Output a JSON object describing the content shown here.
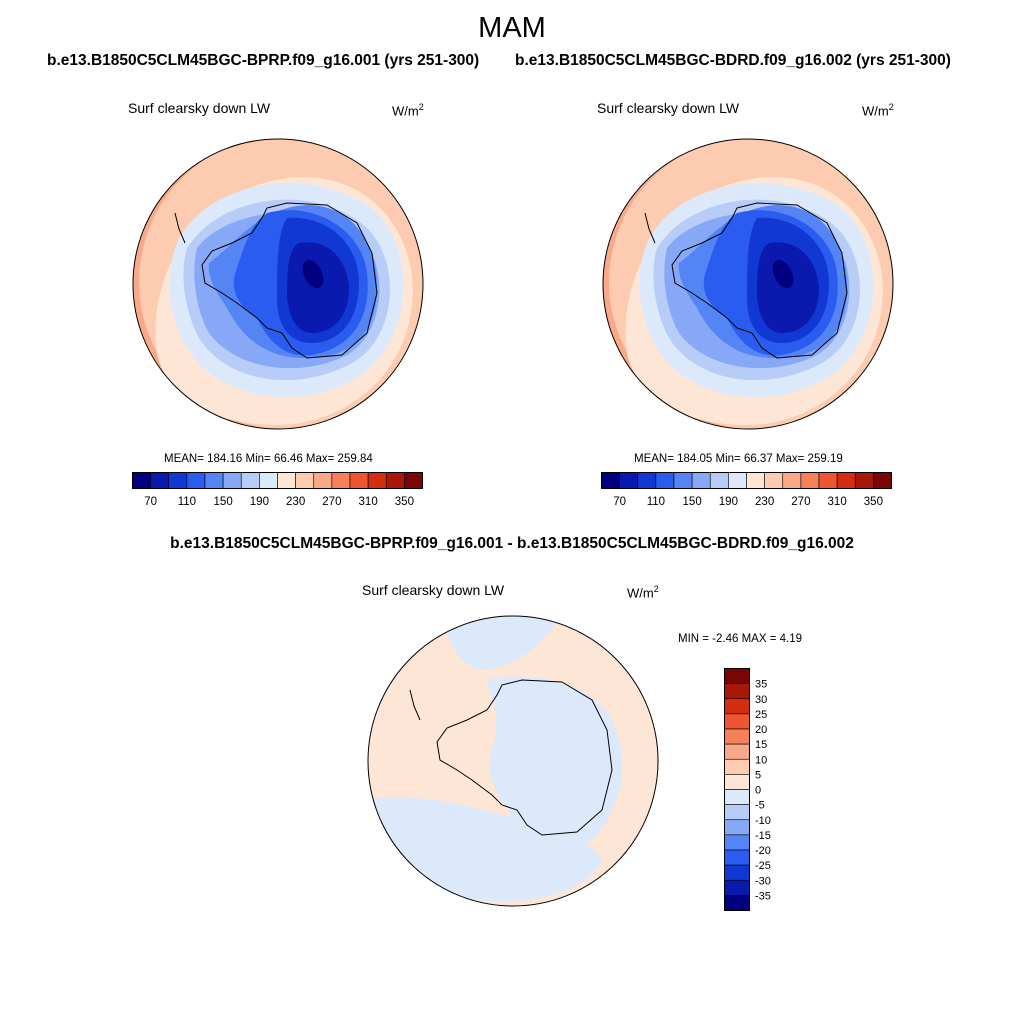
{
  "figure": {
    "title": "MAM",
    "case_a": "b.e13.B1850C5CLM45BGC-BPRP.f09_g16.001 (yrs 251-300)",
    "case_b": "b.e13.B1850C5CLM45BGC-BDRD.f09_g16.002 (yrs 251-300)",
    "diff_title": "b.e13.B1850C5CLM45BGC-BPRP.f09_g16.001 - b.e13.B1850C5CLM45BGC-BDRD.f09_g16.002"
  },
  "panels": [
    {
      "variable": "Surf clearsky down LW",
      "units": "W/m",
      "units_exp": "2",
      "stats_text": "MEAN= 184.16  Min=  66.46  Max= 259.84",
      "mean": 184.16,
      "min": 66.46,
      "max": 259.84
    },
    {
      "variable": "Surf clearsky down LW",
      "units": "W/m",
      "units_exp": "2",
      "stats_text": "MEAN= 184.05  Min=  66.37  Max= 259.19",
      "mean": 184.05,
      "min": 66.37,
      "max": 259.19
    },
    {
      "variable": "Surf clearsky down LW",
      "units": "W/m",
      "units_exp": "2",
      "stats_text": "MIN =  -2.46 MAX =   4.19",
      "min": -2.46,
      "max": 4.19
    }
  ],
  "colorbar_main": {
    "tick_labels": [
      "70",
      "110",
      "150",
      "190",
      "230",
      "270",
      "310",
      "350"
    ],
    "colors": [
      "#000080",
      "#0a1aae",
      "#1238d4",
      "#2a5cf0",
      "#5585f5",
      "#86a8f6",
      "#b7cdf8",
      "#dce9fb",
      "#fde6d6",
      "#fccbb0",
      "#f9a98a",
      "#f5805a",
      "#ee5530",
      "#d42e10",
      "#a81808",
      "#7a0505"
    ]
  },
  "colorbar_diff": {
    "tick_labels": [
      "35",
      "30",
      "25",
      "20",
      "15",
      "10",
      "5",
      "0",
      "-5",
      "-10",
      "-15",
      "-20",
      "-25",
      "-30",
      "-35"
    ],
    "colors_top_to_bottom": [
      "#7a0505",
      "#a81808",
      "#d42e10",
      "#ee5530",
      "#f5805a",
      "#f9a98a",
      "#fccbb0",
      "#fde6d6",
      "#dce9fb",
      "#b7cdf8",
      "#86a8f6",
      "#5585f5",
      "#2a5cf0",
      "#1238d4",
      "#0a1aae",
      "#000080"
    ]
  }
}
